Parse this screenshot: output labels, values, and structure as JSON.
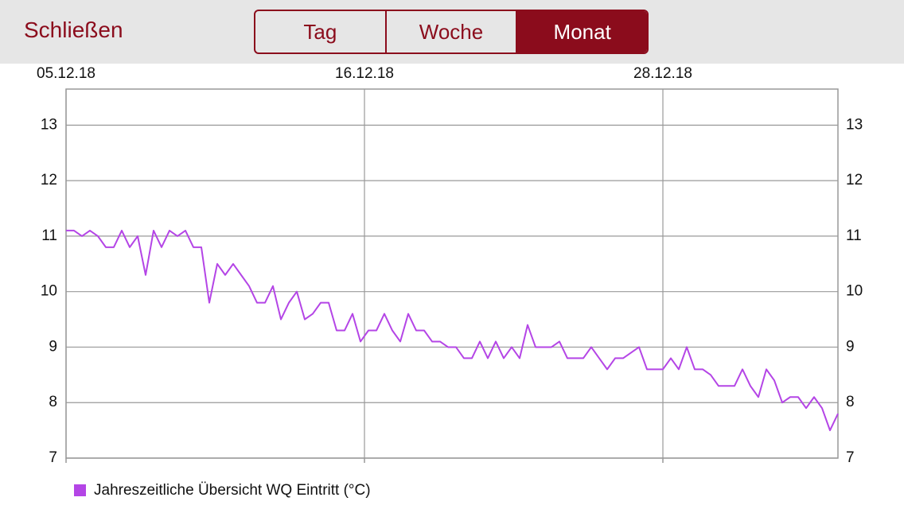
{
  "header": {
    "close": "Schließen",
    "tabs": [
      "Tag",
      "Woche",
      "Monat"
    ],
    "selected_tab": 2
  },
  "chart_data": {
    "type": "line",
    "x": [
      0,
      1,
      2,
      3,
      4,
      5,
      6,
      7,
      8,
      9,
      10,
      11,
      12,
      13,
      14,
      15,
      16,
      17,
      18,
      19,
      20,
      21,
      22,
      23,
      24,
      25,
      26,
      27,
      28,
      29,
      30,
      31,
      32,
      33,
      34,
      35,
      36,
      37,
      38,
      39,
      40,
      41,
      42,
      43,
      44,
      45,
      46,
      47,
      48,
      49,
      50,
      51,
      52,
      53,
      54,
      55,
      56,
      57,
      58,
      59,
      60,
      61,
      62,
      63,
      64,
      65,
      66,
      67,
      68,
      69,
      70,
      71,
      72,
      73,
      74,
      75,
      76,
      77,
      78,
      79,
      80,
      81,
      82,
      83,
      84,
      85,
      86,
      87,
      88,
      89,
      90,
      91,
      92,
      93,
      94,
      95,
      96,
      97
    ],
    "series": [
      {
        "name": "Jahreszeitliche Übersicht WQ Eintritt (°C)",
        "color": "#b445e6",
        "values": [
          11.1,
          11.1,
          11.0,
          11.1,
          11.0,
          10.8,
          10.8,
          11.1,
          10.8,
          11.0,
          10.3,
          11.1,
          10.8,
          11.1,
          11.0,
          11.1,
          10.8,
          10.8,
          9.8,
          10.5,
          10.3,
          10.5,
          10.3,
          10.1,
          9.8,
          9.8,
          10.1,
          9.5,
          9.8,
          10.0,
          9.5,
          9.6,
          9.8,
          9.8,
          9.3,
          9.3,
          9.6,
          9.1,
          9.3,
          9.3,
          9.6,
          9.3,
          9.1,
          9.6,
          9.3,
          9.3,
          9.1,
          9.1,
          9.0,
          9.0,
          8.8,
          8.8,
          9.1,
          8.8,
          9.1,
          8.8,
          9.0,
          8.8,
          9.4,
          9.0,
          9.0,
          9.0,
          9.1,
          8.8,
          8.8,
          8.8,
          9.0,
          8.8,
          8.6,
          8.8,
          8.8,
          8.9,
          9.0,
          8.6,
          8.6,
          8.6,
          8.8,
          8.6,
          9.0,
          8.6,
          8.6,
          8.5,
          8.3,
          8.3,
          8.3,
          8.6,
          8.3,
          8.1,
          8.6,
          8.4,
          8.0,
          8.1,
          8.1,
          7.9,
          8.1,
          7.9,
          7.5,
          7.8
        ]
      }
    ],
    "xlim": [
      0,
      97
    ],
    "xticks": [
      {
        "value": 0,
        "label": "05.12.18"
      },
      {
        "value": 37.5,
        "label": "16.12.18"
      },
      {
        "value": 75,
        "label": "28.12.18"
      }
    ],
    "ylim": [
      7,
      13.65
    ],
    "yticks": [
      7,
      8,
      9,
      10,
      11,
      12,
      13
    ],
    "grid": true,
    "legend": "bottom-left"
  }
}
